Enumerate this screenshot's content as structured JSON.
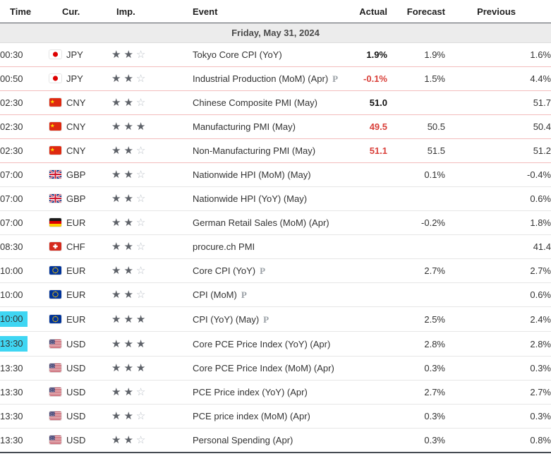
{
  "columns": {
    "time": "Time",
    "cur": "Cur.",
    "imp": "Imp.",
    "event": "Event",
    "actual": "Actual",
    "forecast": "Forecast",
    "previous": "Previous"
  },
  "date_header": "Friday, May 31, 2024",
  "colors": {
    "highlight": "#3fd6f3",
    "actual_bad": "#d9403a",
    "actual_neutral": "#111111",
    "row_divider": "#e6e6e6",
    "released_divider": "#f3bdbd"
  },
  "rows": [
    {
      "time": "00:30",
      "flag": "jp",
      "currency": "JPY",
      "importance": 2,
      "event": "Tokyo Core CPI (YoY)",
      "preliminary": false,
      "actual": "1.9%",
      "actual_tone": "neutral",
      "forecast": "1.9%",
      "previous": "1.6%",
      "released": true,
      "highlight": false
    },
    {
      "time": "00:50",
      "flag": "jp",
      "currency": "JPY",
      "importance": 2,
      "event": "Industrial Production (MoM) (Apr)",
      "preliminary": true,
      "actual": "-0.1%",
      "actual_tone": "bad",
      "forecast": "1.5%",
      "previous": "4.4%",
      "released": true,
      "highlight": false
    },
    {
      "time": "02:30",
      "flag": "cn",
      "currency": "CNY",
      "importance": 2,
      "event": "Chinese Composite PMI (May)",
      "preliminary": false,
      "actual": "51.0",
      "actual_tone": "neutral",
      "forecast": "",
      "previous": "51.7",
      "released": true,
      "highlight": false
    },
    {
      "time": "02:30",
      "flag": "cn",
      "currency": "CNY",
      "importance": 3,
      "event": "Manufacturing PMI (May)",
      "preliminary": false,
      "actual": "49.5",
      "actual_tone": "bad",
      "forecast": "50.5",
      "previous": "50.4",
      "released": true,
      "highlight": false
    },
    {
      "time": "02:30",
      "flag": "cn",
      "currency": "CNY",
      "importance": 2,
      "event": "Non-Manufacturing PMI (May)",
      "preliminary": false,
      "actual": "51.1",
      "actual_tone": "bad",
      "forecast": "51.5",
      "previous": "51.2",
      "released": true,
      "highlight": false
    },
    {
      "time": "07:00",
      "flag": "gb",
      "currency": "GBP",
      "importance": 2,
      "event": "Nationwide HPI (MoM) (May)",
      "preliminary": false,
      "actual": "",
      "actual_tone": "",
      "forecast": "0.1%",
      "previous": "-0.4%",
      "released": false,
      "highlight": false
    },
    {
      "time": "07:00",
      "flag": "gb",
      "currency": "GBP",
      "importance": 2,
      "event": "Nationwide HPI (YoY) (May)",
      "preliminary": false,
      "actual": "",
      "actual_tone": "",
      "forecast": "",
      "previous": "0.6%",
      "released": false,
      "highlight": false
    },
    {
      "time": "07:00",
      "flag": "de",
      "currency": "EUR",
      "importance": 2,
      "event": "German Retail Sales (MoM) (Apr)",
      "preliminary": false,
      "actual": "",
      "actual_tone": "",
      "forecast": "-0.2%",
      "previous": "1.8%",
      "released": false,
      "highlight": false
    },
    {
      "time": "08:30",
      "flag": "ch",
      "currency": "CHF",
      "importance": 2,
      "event": "procure.ch PMI",
      "preliminary": false,
      "actual": "",
      "actual_tone": "",
      "forecast": "",
      "previous": "41.4",
      "released": false,
      "highlight": false
    },
    {
      "time": "10:00",
      "flag": "eu",
      "currency": "EUR",
      "importance": 2,
      "event": "Core CPI (YoY)",
      "preliminary": true,
      "actual": "",
      "actual_tone": "",
      "forecast": "2.7%",
      "previous": "2.7%",
      "released": false,
      "highlight": false
    },
    {
      "time": "10:00",
      "flag": "eu",
      "currency": "EUR",
      "importance": 2,
      "event": "CPI (MoM)",
      "preliminary": true,
      "actual": "",
      "actual_tone": "",
      "forecast": "",
      "previous": "0.6%",
      "released": false,
      "highlight": false
    },
    {
      "time": "10:00",
      "flag": "eu",
      "currency": "EUR",
      "importance": 3,
      "event": "CPI (YoY) (May)",
      "preliminary": true,
      "actual": "",
      "actual_tone": "",
      "forecast": "2.5%",
      "previous": "2.4%",
      "released": false,
      "highlight": true
    },
    {
      "time": "13:30",
      "flag": "us",
      "currency": "USD",
      "importance": 3,
      "event": "Core PCE Price Index (YoY) (Apr)",
      "preliminary": false,
      "actual": "",
      "actual_tone": "",
      "forecast": "2.8%",
      "previous": "2.8%",
      "released": false,
      "highlight": true
    },
    {
      "time": "13:30",
      "flag": "us",
      "currency": "USD",
      "importance": 3,
      "event": "Core PCE Price Index (MoM) (Apr)",
      "preliminary": false,
      "actual": "",
      "actual_tone": "",
      "forecast": "0.3%",
      "previous": "0.3%",
      "released": false,
      "highlight": false
    },
    {
      "time": "13:30",
      "flag": "us",
      "currency": "USD",
      "importance": 2,
      "event": "PCE Price index (YoY) (Apr)",
      "preliminary": false,
      "actual": "",
      "actual_tone": "",
      "forecast": "2.7%",
      "previous": "2.7%",
      "released": false,
      "highlight": false
    },
    {
      "time": "13:30",
      "flag": "us",
      "currency": "USD",
      "importance": 2,
      "event": "PCE price index (MoM) (Apr)",
      "preliminary": false,
      "actual": "",
      "actual_tone": "",
      "forecast": "0.3%",
      "previous": "0.3%",
      "released": false,
      "highlight": false
    },
    {
      "time": "13:30",
      "flag": "us",
      "currency": "USD",
      "importance": 2,
      "event": "Personal Spending (Apr)",
      "preliminary": false,
      "actual": "",
      "actual_tone": "",
      "forecast": "0.3%",
      "previous": "0.8%",
      "released": false,
      "highlight": false
    }
  ]
}
